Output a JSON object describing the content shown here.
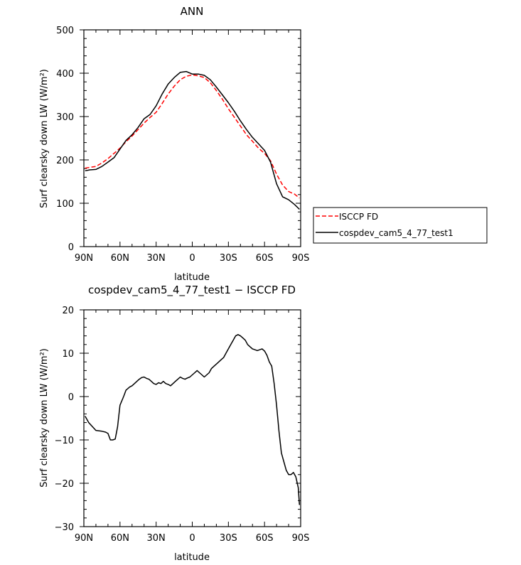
{
  "chart_data": [
    {
      "type": "line",
      "title": "ANN",
      "xlabel": "latitude",
      "ylabel": "Surf clearsky down LW (W/m²)",
      "ylim": [
        0,
        500
      ],
      "xlim": [
        90,
        -90
      ],
      "x_ticks": [
        90,
        60,
        30,
        0,
        -30,
        -60,
        -90
      ],
      "x_tick_labels": [
        "90N",
        "60N",
        "30N",
        "0",
        "30S",
        "60S",
        "90S"
      ],
      "y_ticks": [
        0,
        100,
        200,
        300,
        400,
        500
      ],
      "y_tick_labels": [
        "0",
        "100",
        "200",
        "300",
        "400",
        "500"
      ],
      "legend_position": "right",
      "series": [
        {
          "name": "ISCCP FD",
          "color": "#ff0000",
          "dash": "dashed",
          "x": [
            89,
            85,
            80,
            75,
            70,
            65,
            60,
            55,
            50,
            45,
            40,
            35,
            30,
            25,
            20,
            15,
            10,
            5,
            0,
            -5,
            -10,
            -15,
            -20,
            -25,
            -30,
            -35,
            -40,
            -45,
            -50,
            -55,
            -60,
            -65,
            -70,
            -75,
            -80,
            -85,
            -89
          ],
          "y": [
            181,
            183,
            185,
            193,
            203,
            215,
            227,
            242,
            255,
            270,
            285,
            298,
            310,
            330,
            352,
            370,
            385,
            393,
            396,
            394,
            390,
            378,
            360,
            340,
            318,
            298,
            278,
            258,
            243,
            227,
            215,
            198,
            167,
            142,
            127,
            121,
            112
          ]
        },
        {
          "name": "cospdev_cam5_4_77_test1",
          "color": "#000000",
          "dash": "solid",
          "x": [
            89,
            85,
            80,
            75,
            70,
            65,
            60,
            55,
            50,
            45,
            40,
            35,
            30,
            25,
            20,
            15,
            10,
            5,
            0,
            -5,
            -10,
            -15,
            -20,
            -25,
            -30,
            -35,
            -40,
            -45,
            -50,
            -55,
            -60,
            -65,
            -70,
            -75,
            -80,
            -85,
            -89
          ],
          "y": [
            175,
            177,
            178,
            185,
            195,
            205,
            225,
            245,
            258,
            275,
            295,
            305,
            325,
            352,
            375,
            390,
            402,
            404,
            398,
            398,
            395,
            385,
            368,
            350,
            332,
            312,
            290,
            270,
            252,
            237,
            222,
            195,
            145,
            115,
            108,
            97,
            86
          ]
        }
      ]
    },
    {
      "type": "line",
      "title": "cospdev_cam5_4_77_test1 − ISCCP FD",
      "xlabel": "latitude",
      "ylabel": "Surf clearsky down LW (W/m²)",
      "ylim": [
        -30,
        20
      ],
      "xlim": [
        90,
        -90
      ],
      "x_ticks": [
        90,
        60,
        30,
        0,
        -30,
        -60,
        -90
      ],
      "x_tick_labels": [
        "90N",
        "60N",
        "30N",
        "0",
        "30S",
        "60S",
        "90S"
      ],
      "y_ticks": [
        -30,
        -20,
        -10,
        0,
        10,
        20
      ],
      "y_tick_labels": [
        "−30",
        "−20",
        "−10",
        "0",
        "10",
        "20"
      ],
      "series": [
        {
          "color": "#000000",
          "dash": "solid",
          "x": [
            89,
            86,
            80,
            75,
            72,
            70,
            68,
            66,
            64,
            62,
            60,
            57,
            55,
            52,
            50,
            48,
            46,
            44,
            42,
            40,
            38,
            36,
            34,
            32,
            30,
            28,
            26,
            24,
            22,
            20,
            18,
            16,
            14,
            12,
            10,
            8,
            6,
            4,
            2,
            0,
            -2,
            -4,
            -6,
            -8,
            -10,
            -12,
            -14,
            -16,
            -18,
            -20,
            -22,
            -24,
            -26,
            -28,
            -30,
            -32,
            -34,
            -36,
            -38,
            -40,
            -42,
            -44,
            -46,
            -48,
            -50,
            -52,
            -54,
            -56,
            -58,
            -60,
            -62,
            -64,
            -66,
            -68,
            -70,
            -72,
            -74,
            -76,
            -78,
            -80,
            -82,
            -84,
            -86,
            -88,
            -89
          ],
          "y": [
            -4.5,
            -6,
            -7.8,
            -8,
            -8.2,
            -8.5,
            -10,
            -10,
            -9.8,
            -7,
            -2,
            0,
            1.5,
            2.2,
            2.5,
            3,
            3.5,
            4,
            4.4,
            4.5,
            4.2,
            4,
            3.5,
            3,
            2.8,
            3.2,
            3,
            3.5,
            3,
            2.8,
            2.5,
            3,
            3.5,
            4,
            4.5,
            4.2,
            4,
            4.3,
            4.5,
            5,
            5.5,
            6,
            5.5,
            5,
            4.5,
            5,
            5.5,
            6.5,
            7,
            7.5,
            8,
            8.5,
            9,
            10,
            11,
            12,
            13,
            14,
            14.3,
            14,
            13.5,
            13,
            12,
            11.5,
            11,
            10.8,
            10.6,
            10.8,
            11,
            10.5,
            9.5,
            8,
            7,
            3,
            -2,
            -8,
            -13,
            -15,
            -17,
            -18,
            -18,
            -17.5,
            -18.5,
            -21,
            -25
          ]
        }
      ]
    }
  ]
}
